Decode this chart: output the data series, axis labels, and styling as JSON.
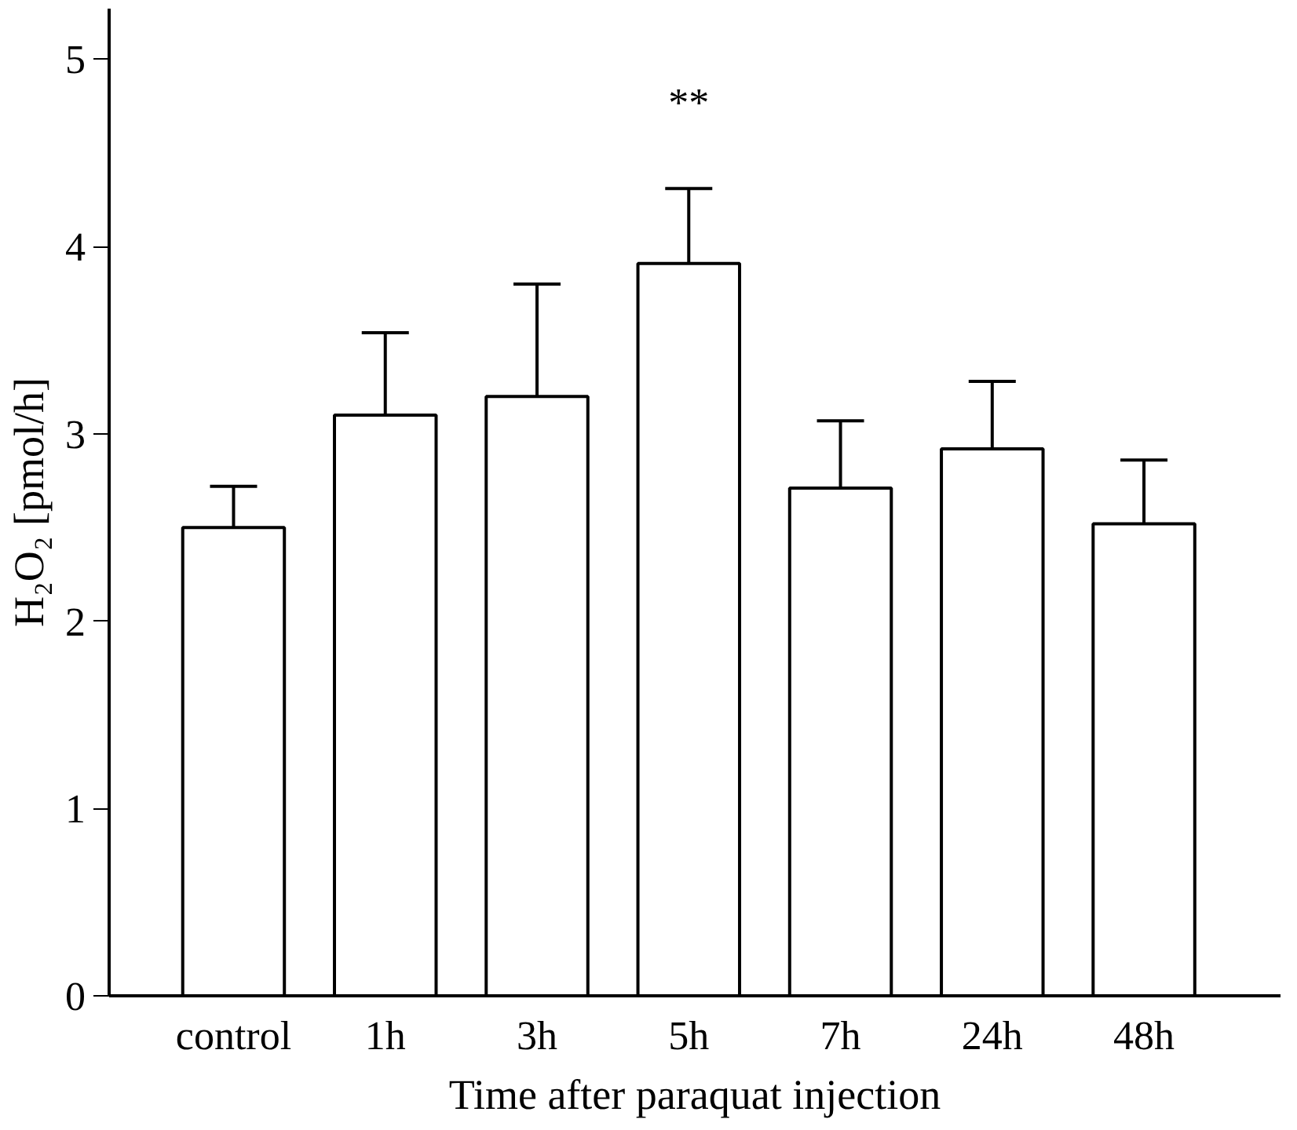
{
  "chart_data": {
    "type": "bar",
    "xlabel": "Time after paraquat injection",
    "ylabel": "H₂O₂ [pmol/h]",
    "categories": [
      "control",
      "1h",
      "3h",
      "5h",
      "7h",
      "24h",
      "48h"
    ],
    "values": [
      2.5,
      3.1,
      3.2,
      3.91,
      2.71,
      2.92,
      2.52
    ],
    "errors": [
      0.22,
      0.44,
      0.6,
      0.4,
      0.36,
      0.36,
      0.34
    ],
    "color": "#ffffff",
    "ylim": [
      0,
      5.27
    ],
    "yticks": [
      0,
      1,
      2,
      3,
      4,
      5
    ],
    "annotations": [
      "**"
    ],
    "grid": false
  }
}
